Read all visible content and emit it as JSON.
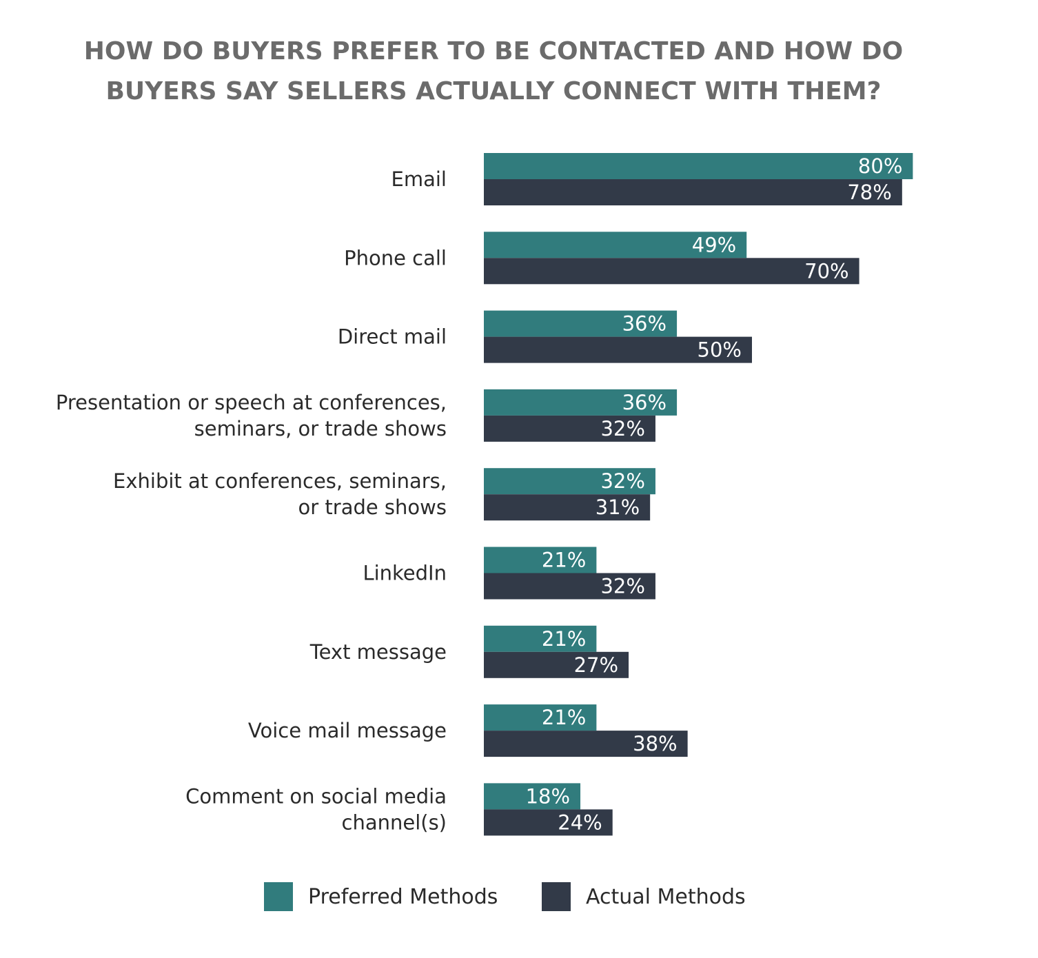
{
  "chart_data": {
    "type": "bar",
    "orientation": "horizontal",
    "title_lines": [
      "HOW DO BUYERS PREFER TO BE CONTACTED AND HOW DO",
      "BUYERS SAY SELLERS ACTUALLY CONNECT WITH THEM?"
    ],
    "categories": [
      [
        "Email"
      ],
      [
        "Phone call"
      ],
      [
        "Direct mail"
      ],
      [
        "Presentation or speech at conferences,",
        "seminars, or trade shows"
      ],
      [
        "Exhibit at conferences, seminars,",
        "or trade shows"
      ],
      [
        "LinkedIn"
      ],
      [
        "Text message"
      ],
      [
        "Voice mail message"
      ],
      [
        "Comment on social media",
        "channel(s)"
      ]
    ],
    "series": [
      {
        "name": "Preferred Methods",
        "color": "#317c7d",
        "values": [
          80,
          49,
          36,
          36,
          32,
          21,
          21,
          21,
          18
        ]
      },
      {
        "name": "Actual Methods",
        "color": "#323a48",
        "values": [
          78,
          70,
          50,
          32,
          31,
          32,
          27,
          38,
          24
        ]
      }
    ],
    "value_suffix": "%",
    "legend_position": "bottom",
    "grid": false,
    "xlim": [
      0,
      100
    ]
  }
}
